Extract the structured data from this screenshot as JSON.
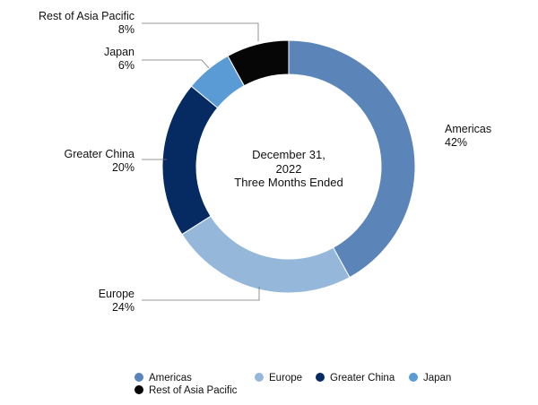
{
  "chart_data": {
    "type": "pie",
    "center_text": [
      "December 31,",
      "2022",
      "Three Months Ended"
    ],
    "slices": [
      {
        "name": "Americas",
        "value": 42,
        "label": "42%",
        "color": "#5b84b8"
      },
      {
        "name": "Europe",
        "value": 24,
        "label": "24%",
        "color": "#95b8da"
      },
      {
        "name": "Greater China",
        "value": 20,
        "label": "20%",
        "color": "#062b63"
      },
      {
        "name": "Japan",
        "value": 6,
        "label": "6%",
        "color": "#5b9bd5"
      },
      {
        "name": "Rest of Asia Pacific",
        "value": 8,
        "label": "8%",
        "color": "#060606"
      }
    ],
    "legend_placement": "bottom"
  }
}
